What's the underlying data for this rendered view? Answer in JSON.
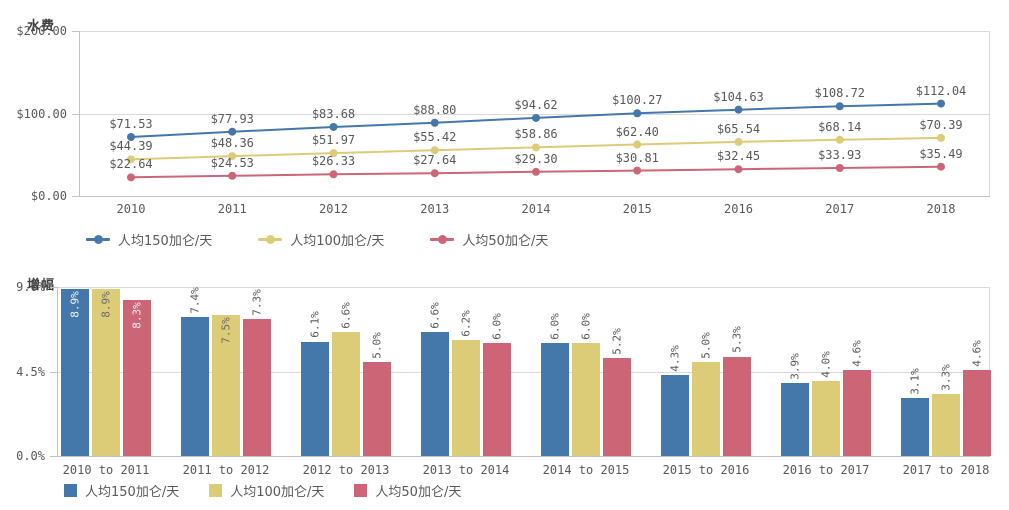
{
  "styles": {
    "background": "#ffffff",
    "text_color": "#595959",
    "title_color": "#3f3f3f",
    "grid_color": "#dadada",
    "axis_color": "#c2c2c2",
    "series_colors": {
      "blue": "#4477AA",
      "yellow": "#DDCC77",
      "red": "#CC6677"
    }
  },
  "chart_data": [
    {
      "type": "line",
      "title": "水费",
      "x": [
        "2010",
        "2011",
        "2012",
        "2013",
        "2014",
        "2015",
        "2016",
        "2017",
        "2018"
      ],
      "y_ticks": [
        {
          "label": "$200.00",
          "value": 200
        },
        {
          "label": "$100.00",
          "value": 100
        },
        {
          "label": "$0.00",
          "value": 0
        }
      ],
      "ylim": [
        0,
        200
      ],
      "grid": true,
      "legend_position": "bottom",
      "series": [
        {
          "name": "人均150加仑/天",
          "color": "#4477AA",
          "values": [
            71.53,
            77.93,
            83.68,
            88.8,
            94.62,
            100.27,
            104.63,
            108.72,
            112.04
          ],
          "labels": [
            "$71.53",
            "$77.93",
            "$83.68",
            "$88.80",
            "$94.62",
            "$100.27",
            "$104.63",
            "$108.72",
            "$112.04"
          ]
        },
        {
          "name": "人均100加仑/天",
          "color": "#DDCC77",
          "values": [
            44.39,
            48.36,
            51.97,
            55.42,
            58.86,
            62.4,
            65.54,
            68.14,
            70.39
          ],
          "labels": [
            "$44.39",
            "$48.36",
            "$51.97",
            "$55.42",
            "$58.86",
            "$62.40",
            "$65.54",
            "$68.14",
            "$70.39"
          ]
        },
        {
          "name": "人均50加仑/天",
          "color": "#CC6677",
          "values": [
            22.64,
            24.53,
            26.33,
            27.64,
            29.3,
            30.81,
            32.45,
            33.93,
            35.49
          ],
          "labels": [
            "$22.64",
            "$24.53",
            "$26.33",
            "$27.64",
            "$29.30",
            "$30.81",
            "$32.45",
            "$33.93",
            "$35.49"
          ]
        }
      ]
    },
    {
      "type": "bar",
      "title": "增幅",
      "categories": [
        "2010 to 2011",
        "2011 to 2012",
        "2012 to 2013",
        "2013 to 2014",
        "2014 to 2015",
        "2015 to 2016",
        "2016 to 2017",
        "2017 to 2018"
      ],
      "y_ticks": [
        {
          "label": "9.0%",
          "value": 9
        },
        {
          "label": "4.5%",
          "value": 4.5
        },
        {
          "label": "0.0%",
          "value": 0
        }
      ],
      "ylim": [
        0,
        9
      ],
      "grid": true,
      "legend_position": "bottom",
      "series": [
        {
          "name": "人均150加仑/天",
          "color": "#4477AA",
          "values": [
            8.9,
            7.4,
            6.1,
            6.6,
            6.0,
            4.3,
            3.9,
            3.1
          ],
          "labels": [
            "8.9%",
            "7.4%",
            "6.1%",
            "6.6%",
            "6.0%",
            "4.3%",
            "3.9%",
            "3.1%"
          ],
          "inside_indices": [
            0
          ],
          "inside_text_color": "#f2f5f8"
        },
        {
          "name": "人均100加仑/天",
          "color": "#DDCC77",
          "values": [
            8.9,
            7.5,
            6.6,
            6.2,
            6.0,
            5.0,
            4.0,
            3.3
          ],
          "labels": [
            "8.9%",
            "7.5%",
            "6.6%",
            "6.2%",
            "6.0%",
            "5.0%",
            "4.0%",
            "3.3%"
          ],
          "inside_indices": [
            0,
            1
          ],
          "inside_text_color": "#6b6b6b"
        },
        {
          "name": "人均50加仑/天",
          "color": "#CC6677",
          "values": [
            8.3,
            7.3,
            5.0,
            6.0,
            5.2,
            5.3,
            4.6,
            4.6
          ],
          "labels": [
            "8.3%",
            "7.3%",
            "5.0%",
            "6.0%",
            "5.2%",
            "5.3%",
            "4.6%",
            "4.6%"
          ],
          "inside_indices": [
            0
          ],
          "inside_text_color": "#f6edef"
        }
      ]
    }
  ]
}
